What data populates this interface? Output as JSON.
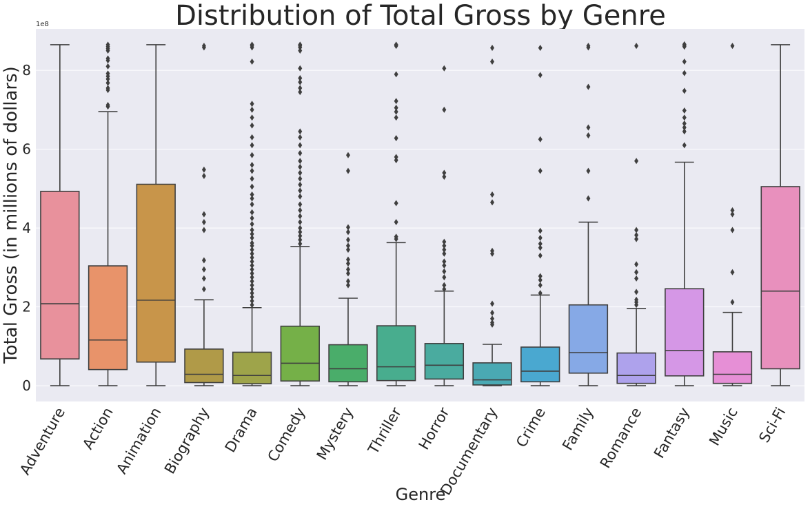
{
  "chart_data": {
    "type": "box",
    "title": "Distribution of Total Gross by Genre",
    "xlabel": "Genre",
    "ylabel": "Total Gross (in millions of dollars)",
    "y_offset_label": "1e8",
    "y_ticks": [
      "0",
      "2",
      "4",
      "6",
      "8"
    ],
    "y_tick_values": [
      0,
      2,
      4,
      6,
      8
    ],
    "ylim": [
      -0.4,
      9.05
    ],
    "units_note": "y values in units of 1e8 dollars",
    "grid": true,
    "background_color": "#eaeaf2",
    "grid_color": "#ffffff",
    "series": [
      {
        "category": "Adventure",
        "color": "#e8919c",
        "q1": 0.68,
        "median": 2.08,
        "q3": 4.93,
        "whisker_low": 0.0,
        "whisker_high": 8.65,
        "outliers": []
      },
      {
        "category": "Action",
        "color": "#e8936a",
        "q1": 0.41,
        "median": 1.16,
        "q3": 3.04,
        "whisker_low": 0.0,
        "whisker_high": 6.95,
        "outliers": [
          7.08,
          7.12,
          7.5,
          7.55,
          7.68,
          7.78,
          7.85,
          7.92,
          8.1,
          8.25,
          8.3,
          8.5,
          8.55,
          8.6,
          8.65
        ]
      },
      {
        "category": "Animation",
        "color": "#c8954a",
        "q1": 0.6,
        "median": 2.17,
        "q3": 5.11,
        "whisker_low": 0.0,
        "whisker_high": 8.65,
        "outliers": []
      },
      {
        "category": "Biography",
        "color": "#b09a48",
        "q1": 0.08,
        "median": 0.29,
        "q3": 0.93,
        "whisker_low": 0.0,
        "whisker_high": 2.18,
        "outliers": [
          2.45,
          2.72,
          2.95,
          3.18,
          3.95,
          4.15,
          4.35,
          5.32,
          5.48,
          8.58,
          8.62
        ]
      },
      {
        "category": "Drama",
        "color": "#9ea44a",
        "q1": 0.05,
        "median": 0.26,
        "q3": 0.85,
        "whisker_low": 0.0,
        "whisker_high": 1.98,
        "outliers": [
          2.05,
          2.15,
          2.25,
          2.35,
          2.45,
          2.55,
          2.65,
          2.75,
          2.85,
          2.95,
          3.05,
          3.15,
          3.25,
          3.35,
          3.45,
          3.55,
          3.62,
          3.75,
          3.85,
          3.95,
          4.1,
          4.25,
          4.4,
          4.6,
          4.75,
          4.85,
          5.05,
          5.25,
          5.45,
          5.6,
          5.85,
          6.1,
          6.3,
          6.6,
          6.8,
          7.0,
          7.15,
          8.22,
          8.58,
          8.62,
          8.65
        ]
      },
      {
        "category": "Comedy",
        "color": "#75b048",
        "q1": 0.12,
        "median": 0.57,
        "q3": 1.51,
        "whisker_low": 0.0,
        "whisker_high": 3.53,
        "outliers": [
          3.6,
          3.7,
          3.8,
          3.9,
          4.0,
          4.15,
          4.3,
          4.45,
          4.6,
          4.8,
          4.95,
          5.1,
          5.25,
          5.4,
          5.55,
          5.7,
          5.9,
          6.1,
          6.3,
          6.45,
          7.45,
          7.55,
          7.7,
          7.8,
          8.05,
          8.5,
          8.58,
          8.62,
          8.65
        ]
      },
      {
        "category": "Mystery",
        "color": "#4aad6a",
        "q1": 0.1,
        "median": 0.43,
        "q3": 1.04,
        "whisker_low": 0.0,
        "whisker_high": 2.22,
        "outliers": [
          2.55,
          2.65,
          2.85,
          2.95,
          3.1,
          3.2,
          3.45,
          3.55,
          3.7,
          3.9,
          4.02,
          5.45,
          5.85
        ]
      },
      {
        "category": "Thriller",
        "color": "#48ad8e",
        "q1": 0.13,
        "median": 0.48,
        "q3": 1.52,
        "whisker_low": 0.0,
        "whisker_high": 3.63,
        "outliers": [
          3.72,
          3.78,
          4.15,
          4.63,
          5.72,
          5.8,
          6.28,
          6.8,
          6.95,
          7.05,
          7.22,
          7.9,
          8.62,
          8.65
        ]
      },
      {
        "category": "Horror",
        "color": "#4aab9f",
        "q1": 0.17,
        "median": 0.52,
        "q3": 1.07,
        "whisker_low": 0.0,
        "whisker_high": 2.4,
        "outliers": [
          2.45,
          2.55,
          2.75,
          2.9,
          3.05,
          3.15,
          3.35,
          3.45,
          3.55,
          3.65,
          5.3,
          5.4,
          7.0,
          8.05
        ]
      },
      {
        "category": "Documentary",
        "color": "#4aa9b3",
        "q1": 0.02,
        "median": 0.15,
        "q3": 0.58,
        "whisker_low": 0.0,
        "whisker_high": 1.05,
        "outliers": [
          1.55,
          1.6,
          1.7,
          1.85,
          2.08,
          3.35,
          3.42,
          4.65,
          4.85,
          8.22,
          8.57
        ]
      },
      {
        "category": "Crime",
        "color": "#4aa8d0",
        "q1": 0.1,
        "median": 0.37,
        "q3": 0.98,
        "whisker_low": 0.0,
        "whisker_high": 2.3,
        "outliers": [
          2.35,
          2.55,
          2.68,
          2.78,
          3.3,
          3.5,
          3.6,
          3.75,
          3.93,
          5.45,
          6.25,
          7.88,
          8.57
        ]
      },
      {
        "category": "Family",
        "color": "#86a9e6",
        "q1": 0.32,
        "median": 0.84,
        "q3": 2.05,
        "whisker_low": 0.0,
        "whisker_high": 4.15,
        "outliers": [
          4.75,
          5.45,
          6.35,
          6.55,
          7.58,
          8.58,
          8.62
        ]
      },
      {
        "category": "Romance",
        "color": "#aea2ec",
        "q1": 0.06,
        "median": 0.26,
        "q3": 0.83,
        "whisker_low": 0.0,
        "whisker_high": 1.96,
        "outliers": [
          2.05,
          2.12,
          2.18,
          2.38,
          2.72,
          2.88,
          3.08,
          3.72,
          3.82,
          3.95,
          5.7,
          8.62
        ]
      },
      {
        "category": "Fantasy",
        "color": "#d597e6",
        "q1": 0.25,
        "median": 0.89,
        "q3": 2.46,
        "whisker_low": 0.0,
        "whisker_high": 5.67,
        "outliers": [
          6.1,
          6.45,
          6.55,
          6.65,
          6.8,
          6.98,
          7.48,
          7.93,
          8.22,
          8.6,
          8.63,
          8.66
        ]
      },
      {
        "category": "Music",
        "color": "#e68fd6",
        "q1": 0.06,
        "median": 0.29,
        "q3": 0.86,
        "whisker_low": 0.0,
        "whisker_high": 1.86,
        "outliers": [
          2.12,
          2.88,
          3.95,
          4.35,
          4.45,
          8.62
        ]
      },
      {
        "category": "Sci-Fi",
        "color": "#e890bd",
        "q1": 0.43,
        "median": 2.4,
        "q3": 5.05,
        "whisker_low": 0.0,
        "whisker_high": 8.65,
        "outliers": []
      }
    ]
  }
}
